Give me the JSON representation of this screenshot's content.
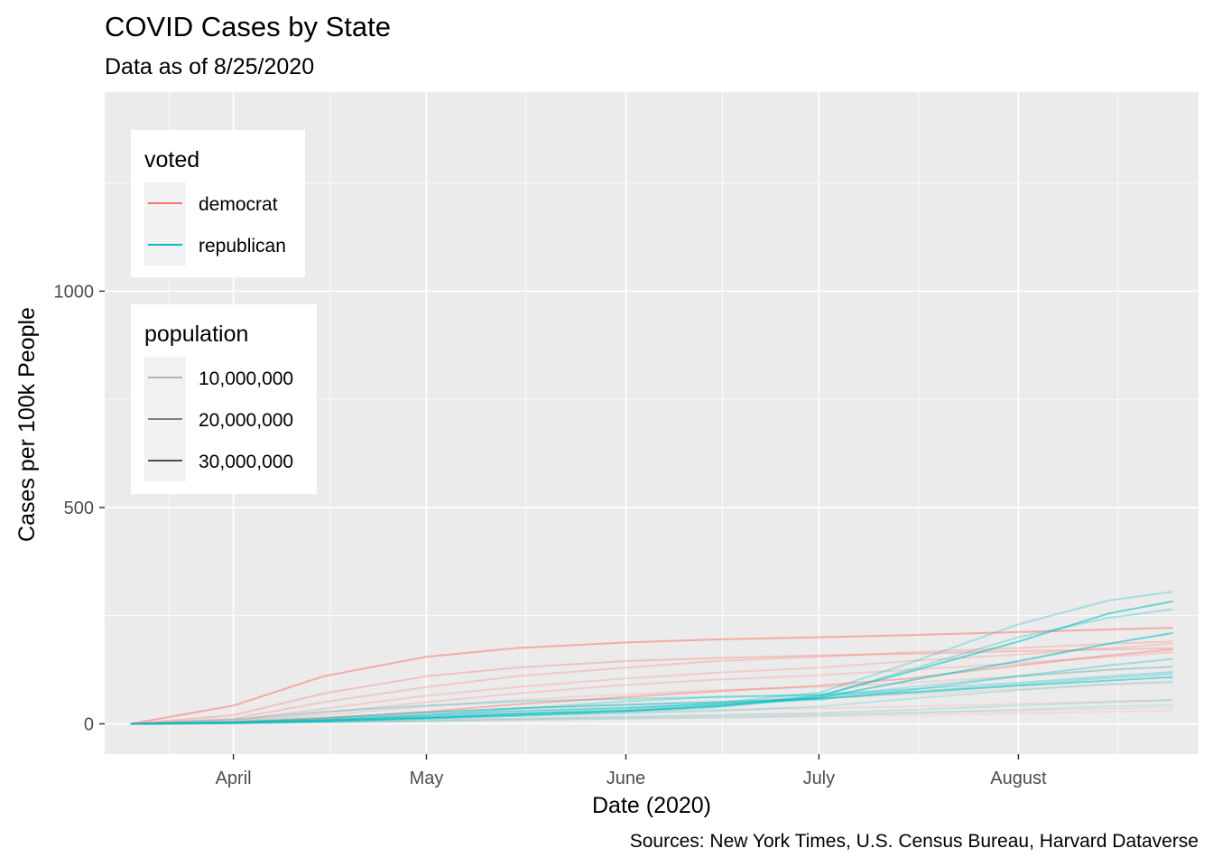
{
  "title": "COVID Cases by State",
  "subtitle": "Data as of 8/25/2020",
  "caption": "Sources: New York Times, U.S. Census Bureau, Harvard Dataverse",
  "chart_data": {
    "type": "line",
    "title": "COVID Cases by State",
    "subtitle": "Data as of 8/25/2020",
    "xlabel": "Date (2020)",
    "ylabel": "Cases per 100k People",
    "x_ticks": [
      {
        "date": "2020-04-01",
        "label": "April"
      },
      {
        "date": "2020-05-01",
        "label": "May"
      },
      {
        "date": "2020-06-01",
        "label": "June"
      },
      {
        "date": "2020-07-01",
        "label": "July"
      },
      {
        "date": "2020-08-01",
        "label": "August"
      }
    ],
    "y_ticks": [
      0,
      500,
      1000
    ],
    "xlim": [
      "2020-03-12",
      "2020-08-29"
    ],
    "ylim": [
      -70,
      1460
    ],
    "grid": true,
    "background": "#ebebeb",
    "x_dates": [
      "2020-03-16",
      "2020-04-01",
      "2020-04-15",
      "2020-05-01",
      "2020-05-15",
      "2020-06-01",
      "2020-06-15",
      "2020-07-01",
      "2020-07-15",
      "2020-08-01",
      "2020-08-15",
      "2020-08-25"
    ],
    "legends": [
      {
        "title": "voted",
        "kind": "color",
        "placement": "top-left",
        "entries": [
          {
            "label": "democrat",
            "color": "#F8766D"
          },
          {
            "label": "republican",
            "color": "#00BFC4"
          }
        ]
      },
      {
        "title": "population",
        "kind": "alpha",
        "placement": "left",
        "entries": [
          {
            "label": "10,000,000",
            "color": "#b3b3b3"
          },
          {
            "label": "20,000,000",
            "color": "#7f7f7f"
          },
          {
            "label": "30,000,000",
            "color": "#4d4d4d"
          }
        ]
      }
    ],
    "series": [
      {
        "voted": "democrat",
        "alpha": 0.55,
        "values": [
          0,
          42,
          110,
          155,
          175,
          188,
          195,
          200,
          205,
          212,
          218,
          222
        ]
      },
      {
        "voted": "democrat",
        "alpha": 0.35,
        "values": [
          0,
          20,
          70,
          110,
          130,
          145,
          152,
          158,
          162,
          168,
          172,
          175
        ]
      },
      {
        "voted": "democrat",
        "alpha": 0.3,
        "values": [
          0,
          12,
          50,
          85,
          110,
          130,
          145,
          155,
          165,
          175,
          185,
          190
        ]
      },
      {
        "voted": "democrat",
        "alpha": 0.25,
        "values": [
          0,
          8,
          35,
          65,
          85,
          105,
          118,
          130,
          145,
          160,
          175,
          185
        ]
      },
      {
        "voted": "democrat",
        "alpha": 0.25,
        "values": [
          0,
          6,
          25,
          50,
          70,
          90,
          102,
          112,
          125,
          140,
          155,
          165
        ]
      },
      {
        "voted": "democrat",
        "alpha": 0.45,
        "values": [
          0,
          3,
          12,
          28,
          45,
          62,
          75,
          88,
          105,
          135,
          158,
          172
        ]
      },
      {
        "voted": "democrat",
        "alpha": 0.2,
        "values": [
          0,
          5,
          20,
          40,
          55,
          68,
          78,
          85,
          95,
          110,
          125,
          132
        ]
      },
      {
        "voted": "democrat",
        "alpha": 0.15,
        "values": [
          0,
          3,
          12,
          25,
          35,
          45,
          52,
          60,
          68,
          80,
          90,
          95
        ]
      },
      {
        "voted": "democrat",
        "alpha": 0.15,
        "values": [
          0,
          2,
          8,
          15,
          22,
          28,
          32,
          36,
          40,
          46,
          52,
          55
        ]
      },
      {
        "voted": "democrat",
        "alpha": 0.12,
        "values": [
          0,
          1,
          4,
          8,
          12,
          16,
          19,
          22,
          26,
          30,
          35,
          38
        ]
      },
      {
        "voted": "democrat",
        "alpha": 0.12,
        "values": [
          0,
          1,
          3,
          6,
          9,
          12,
          14,
          17,
          20,
          24,
          28,
          30
        ]
      },
      {
        "voted": "republican",
        "alpha": 0.3,
        "values": [
          0,
          2,
          7,
          15,
          24,
          34,
          48,
          72,
          140,
          230,
          285,
          305
        ]
      },
      {
        "voted": "republican",
        "alpha": 0.55,
        "values": [
          0,
          2,
          6,
          13,
          20,
          30,
          42,
          65,
          120,
          190,
          255,
          283
        ]
      },
      {
        "voted": "republican",
        "alpha": 0.3,
        "values": [
          0,
          2,
          6,
          12,
          18,
          27,
          38,
          62,
          125,
          200,
          245,
          265
        ]
      },
      {
        "voted": "republican",
        "alpha": 0.55,
        "values": [
          0,
          3,
          8,
          15,
          23,
          30,
          40,
          60,
          100,
          145,
          185,
          210
        ]
      },
      {
        "voted": "republican",
        "alpha": 0.35,
        "values": [
          0,
          3,
          10,
          20,
          30,
          38,
          46,
          56,
          78,
          110,
          135,
          150
        ]
      },
      {
        "voted": "republican",
        "alpha": 0.3,
        "values": [
          0,
          10,
          28,
          42,
          52,
          58,
          62,
          66,
          74,
          90,
          106,
          115
        ]
      },
      {
        "voted": "republican",
        "alpha": 0.5,
        "values": [
          0,
          4,
          14,
          26,
          36,
          44,
          50,
          58,
          72,
          88,
          100,
          108
        ]
      },
      {
        "voted": "republican",
        "alpha": 0.25,
        "values": [
          0,
          3,
          10,
          20,
          28,
          36,
          45,
          60,
          85,
          110,
          125,
          132
        ]
      },
      {
        "voted": "republican",
        "alpha": 0.2,
        "values": [
          0,
          2,
          6,
          12,
          18,
          24,
          30,
          40,
          58,
          78,
          92,
          98
        ]
      },
      {
        "voted": "republican",
        "alpha": 0.18,
        "values": [
          0,
          1,
          4,
          8,
          12,
          16,
          20,
          25,
          32,
          42,
          50,
          55
        ]
      },
      {
        "voted": "republican",
        "alpha": 0.15,
        "values": [
          0,
          1,
          3,
          6,
          9,
          12,
          15,
          19,
          25,
          33,
          40,
          44
        ]
      },
      {
        "voted": "republican",
        "alpha": 0.3,
        "values": [
          0,
          2,
          8,
          20,
          35,
          52,
          62,
          68,
          80,
          95,
          110,
          120
        ]
      }
    ]
  }
}
